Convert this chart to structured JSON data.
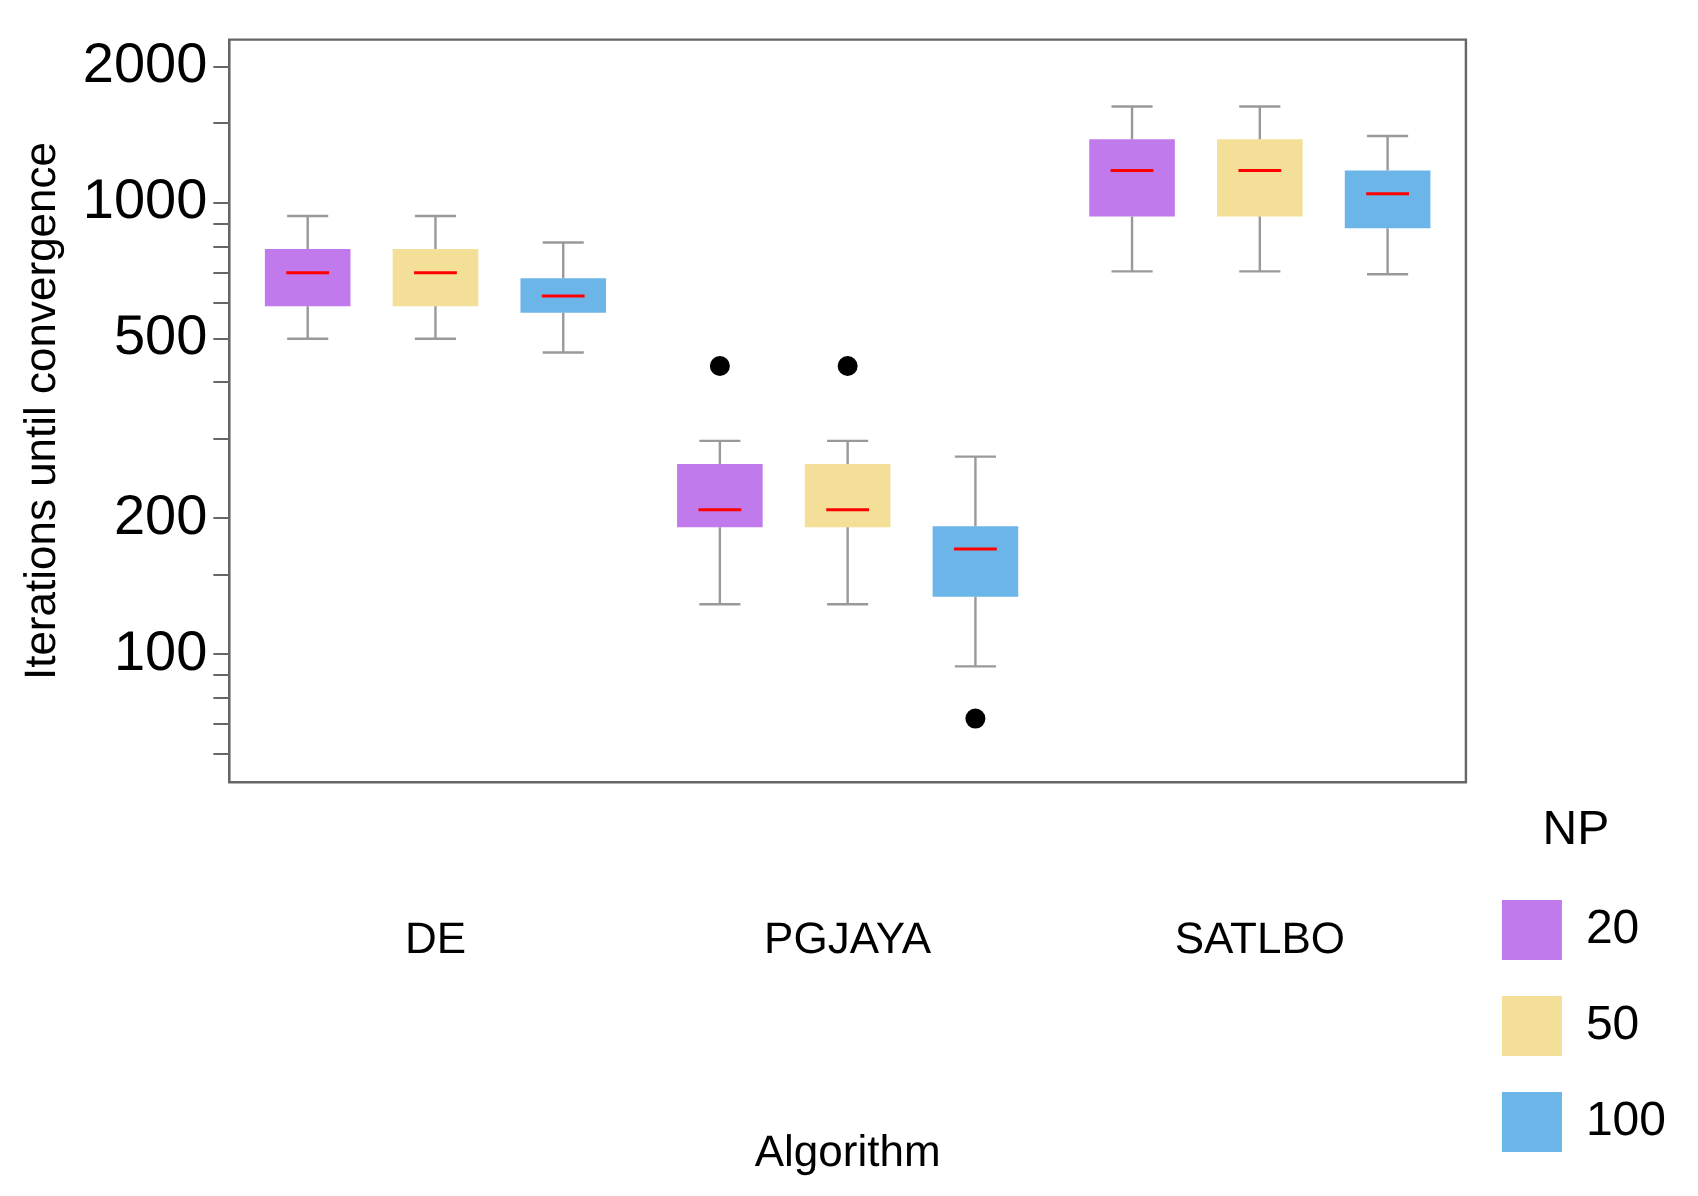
{
  "chart_data": {
    "type": "box",
    "xlabel": "Algorithm",
    "ylabel": "Iterations until convergence",
    "legend_title": "NP",
    "legend": "right",
    "log": true,
    "grid": false,
    "categories": [
      "DE",
      "PGJAYA",
      "SATLBO"
    ],
    "ylim": [
      52,
      2300
    ],
    "yticks": [
      {
        "value": 60,
        "label": null
      },
      {
        "value": 70,
        "label": null
      },
      {
        "value": 80,
        "label": null
      },
      {
        "value": 90,
        "label": null
      },
      100,
      {
        "value": 150,
        "label": null
      },
      200,
      {
        "value": 300,
        "label": null
      },
      {
        "value": 400,
        "label": null
      },
      500,
      {
        "value": 600,
        "label": null
      },
      {
        "value": 700,
        "label": null
      },
      {
        "value": 800,
        "label": null
      },
      {
        "value": 900,
        "label": null
      },
      1000,
      {
        "value": 1500,
        "label": null
      },
      2000
    ],
    "series": [
      {
        "name": "20",
        "color": "#c17aec",
        "boxes": [
          {
            "low": 500,
            "q1": 590,
            "median": 700,
            "q3": 790,
            "high": 935
          },
          {
            "low": 129,
            "q1": 191,
            "median": 209,
            "q3": 264,
            "high": 297,
            "outliers": [
              435
            ]
          },
          {
            "low": 705,
            "q1": 933,
            "median": 1180,
            "q3": 1384,
            "high": 1635
          }
        ]
      },
      {
        "name": "50",
        "color": "#f4df98",
        "boxes": [
          {
            "low": 500,
            "q1": 590,
            "median": 700,
            "q3": 790,
            "high": 935
          },
          {
            "low": 129,
            "q1": 191,
            "median": 209,
            "q3": 264,
            "high": 297,
            "outliers": [
              435
            ]
          },
          {
            "low": 705,
            "q1": 933,
            "median": 1180,
            "q3": 1384,
            "high": 1635
          }
        ]
      },
      {
        "name": "100",
        "color": "#6cb5e9",
        "boxes": [
          {
            "low": 466,
            "q1": 571,
            "median": 622,
            "q3": 681,
            "high": 817
          },
          {
            "low": 94,
            "q1": 134,
            "median": 171,
            "q3": 192,
            "high": 274,
            "outliers": [
              72
            ]
          },
          {
            "low": 695,
            "q1": 878,
            "median": 1048,
            "q3": 1180,
            "high": 1407
          }
        ]
      }
    ]
  }
}
